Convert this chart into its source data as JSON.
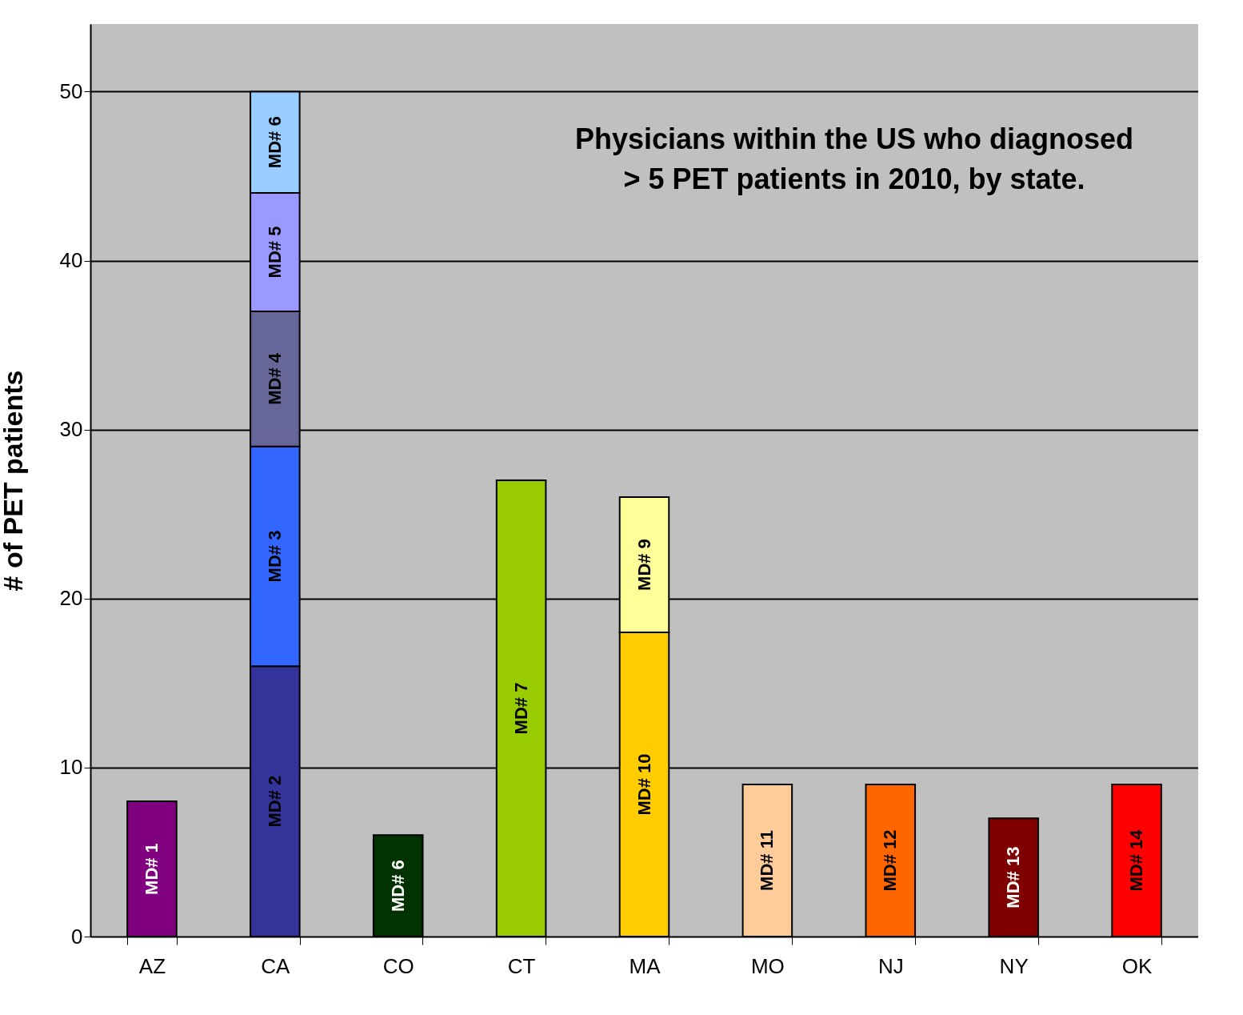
{
  "chart_data": {
    "type": "bar",
    "title": "Physicians within the US who diagnosed\n> 5 PET patients in 2010, by state.",
    "ylabel": "# of PET patients",
    "categories": [
      "AZ",
      "CA",
      "CO",
      "CT",
      "MA",
      "MO",
      "NJ",
      "NY",
      "OK"
    ],
    "stacked": true,
    "legend": false,
    "grid": "y",
    "ylim": [
      0,
      54
    ],
    "yticks": [
      0,
      10,
      20,
      30,
      40,
      50
    ],
    "series": [
      {
        "name": "MD# 1",
        "color": "#800080",
        "values": [
          8,
          null,
          null,
          null,
          null,
          null,
          null,
          null,
          null
        ]
      },
      {
        "name": "MD# 2",
        "color": "#333399",
        "values": [
          null,
          16,
          null,
          null,
          null,
          null,
          null,
          null,
          null
        ]
      },
      {
        "name": "MD# 3",
        "color": "#3366ff",
        "values": [
          null,
          13,
          null,
          null,
          null,
          null,
          null,
          null,
          null
        ]
      },
      {
        "name": "MD# 4",
        "color": "#666699",
        "values": [
          null,
          8,
          null,
          null,
          null,
          null,
          null,
          null,
          null
        ]
      },
      {
        "name": "MD# 5",
        "color": "#9999ff",
        "values": [
          null,
          7,
          null,
          null,
          null,
          null,
          null,
          null,
          null
        ]
      },
      {
        "name": "MD# 6",
        "color": "#99ccff",
        "values": [
          null,
          6,
          null,
          null,
          null,
          null,
          null,
          null,
          null
        ]
      },
      {
        "name": "MD# 6",
        "color": "#003300",
        "values": [
          null,
          null,
          6,
          null,
          null,
          null,
          null,
          null,
          null
        ]
      },
      {
        "name": "MD# 7",
        "color": "#99cc00",
        "values": [
          null,
          null,
          null,
          27,
          null,
          null,
          null,
          null,
          null
        ]
      },
      {
        "name": "MD# 10",
        "color": "#ffcc00",
        "values": [
          null,
          null,
          null,
          null,
          18,
          null,
          null,
          null,
          null
        ]
      },
      {
        "name": "MD# 9",
        "color": "#ffff99",
        "values": [
          null,
          null,
          null,
          null,
          8,
          null,
          null,
          null,
          null
        ]
      },
      {
        "name": "MD# 11",
        "color": "#ffcc99",
        "values": [
          null,
          null,
          null,
          null,
          null,
          9,
          null,
          null,
          null
        ]
      },
      {
        "name": "MD# 12",
        "color": "#ff6600",
        "values": [
          null,
          null,
          null,
          null,
          null,
          null,
          9,
          null,
          null
        ]
      },
      {
        "name": "MD# 13",
        "color": "#800000",
        "values": [
          null,
          null,
          null,
          null,
          null,
          null,
          null,
          7,
          null
        ]
      },
      {
        "name": "MD# 14",
        "color": "#ff0000",
        "values": [
          null,
          null,
          null,
          null,
          null,
          null,
          null,
          null,
          9
        ]
      }
    ]
  }
}
